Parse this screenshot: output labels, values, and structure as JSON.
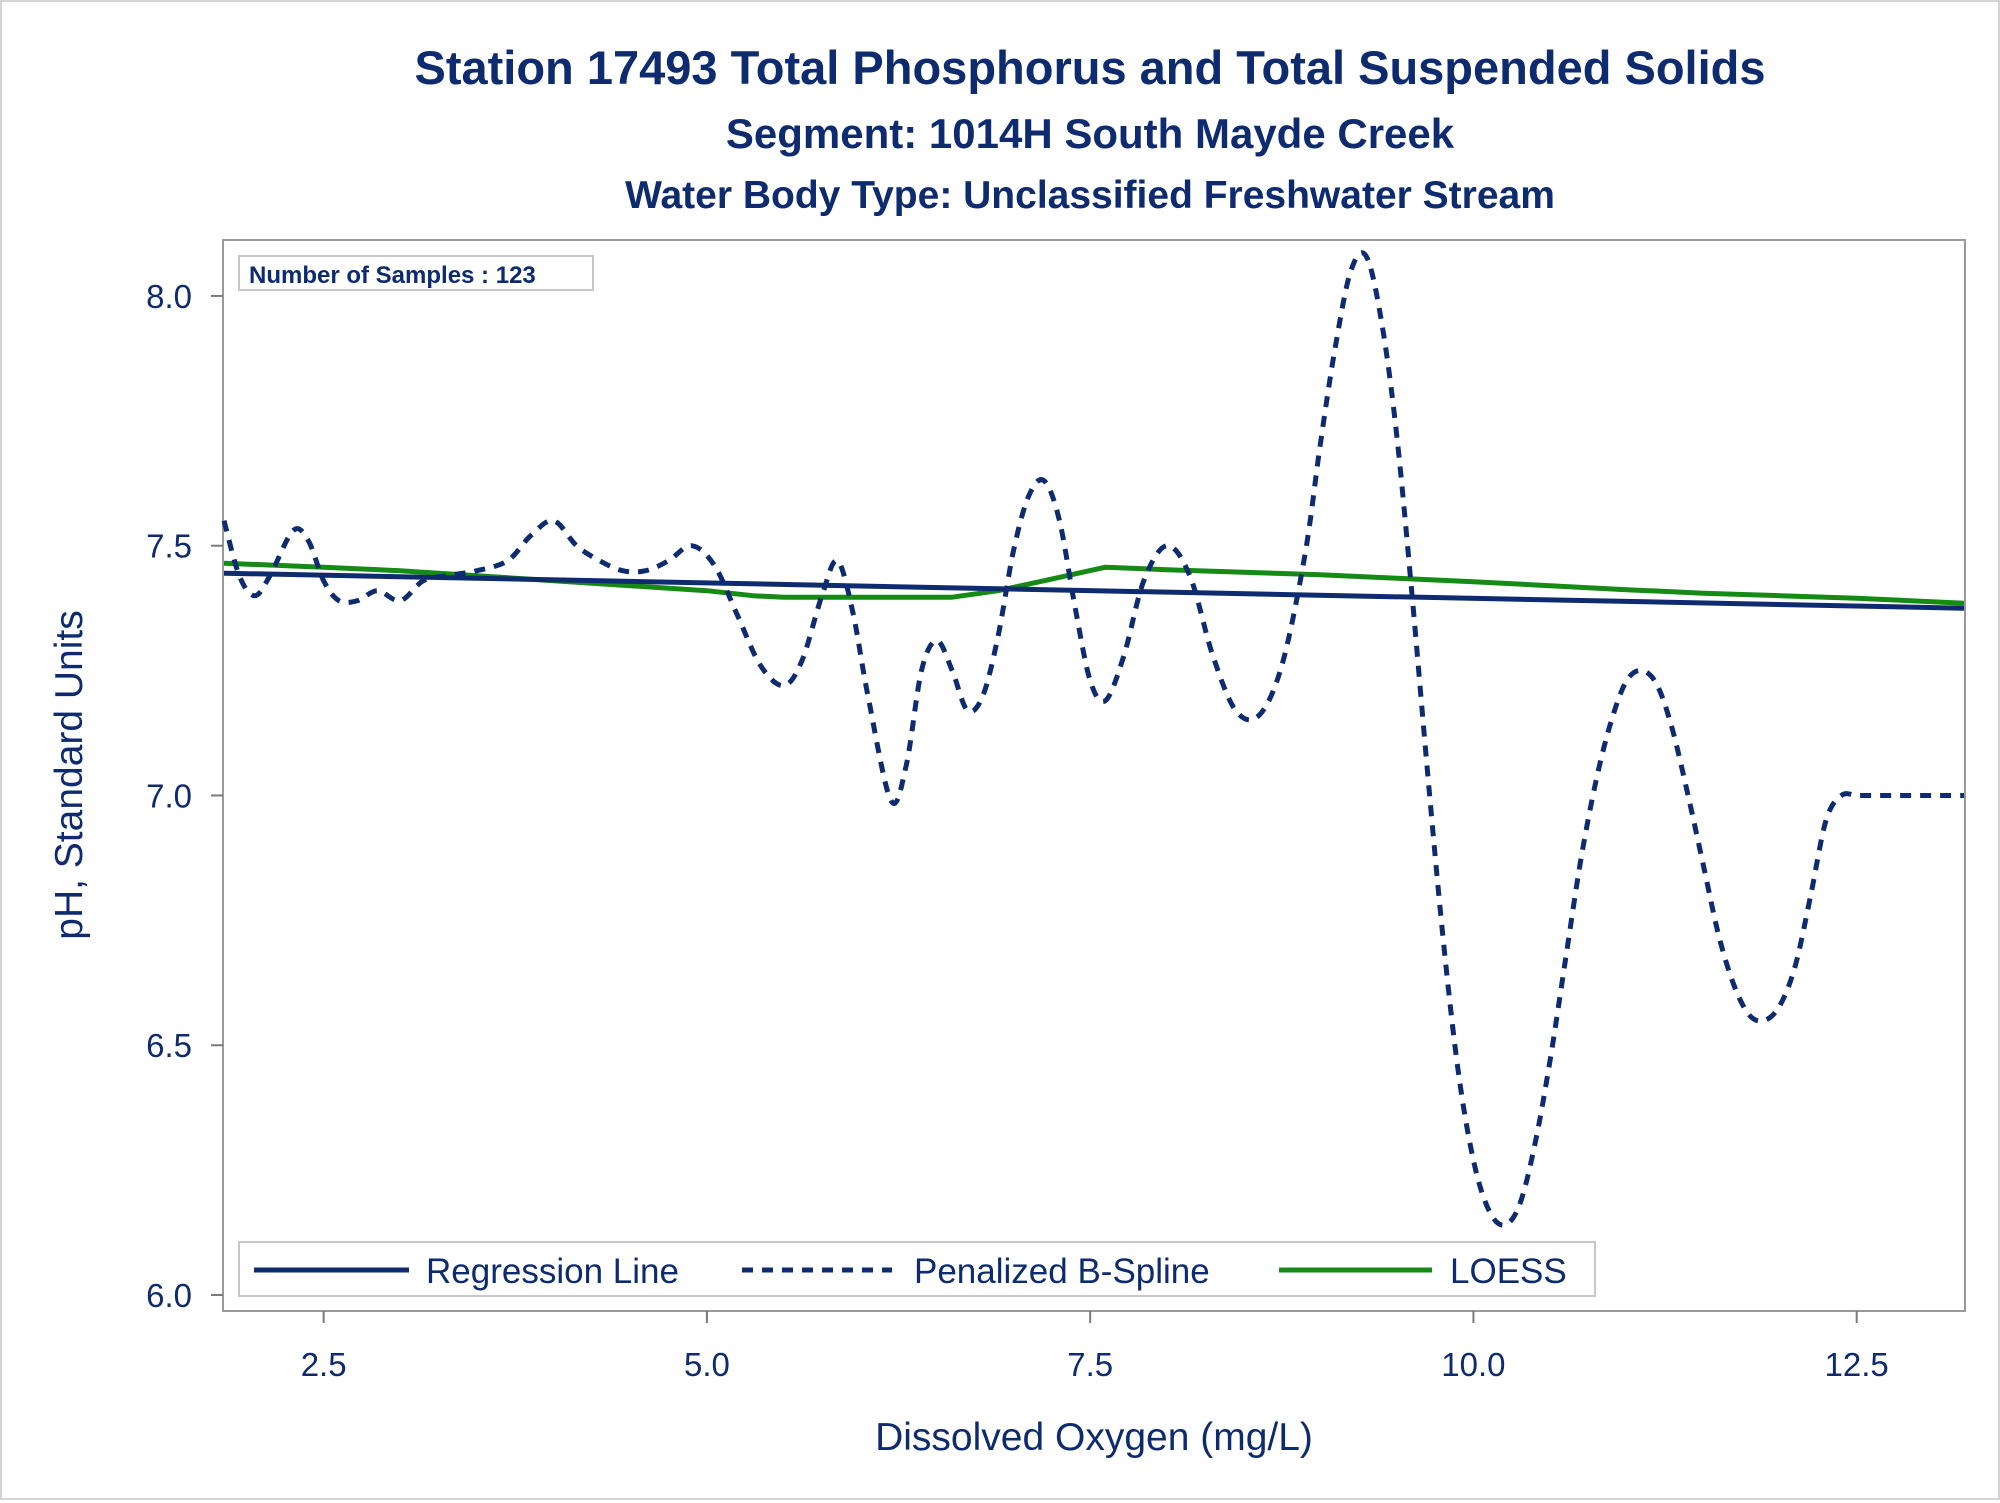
{
  "chart_data": {
    "type": "line",
    "title": "Station 17493  Total Phosphorus and Total Suspended Solids",
    "subtitle": "Segment: 1014H  South Mayde Creek",
    "subtitle2": "Water Body Type: Unclassified Freshwater Stream",
    "xlabel": "Dissolved Oxygen (mg/L)",
    "ylabel": "pH, Standard Units",
    "xlim": [
      1.85,
      13.2
    ],
    "ylim": [
      5.97,
      8.11
    ],
    "xticks": [
      "2.5",
      "5.0",
      "7.5",
      "10.0",
      "12.5"
    ],
    "xtick_values": [
      2.5,
      5.0,
      7.5,
      10.0,
      12.5
    ],
    "yticks": [
      "6.0",
      "6.5",
      "7.0",
      "7.5",
      "8.0"
    ],
    "ytick_values": [
      6.0,
      6.5,
      7.0,
      7.5,
      8.0
    ],
    "grid": false,
    "legend_position": "bottom-inside",
    "inset_label": "Number of Samples : 123",
    "colors": {
      "navy": "#0d2b6e",
      "green": "#158a14",
      "frame": "#9a9a9a"
    },
    "series": [
      {
        "name": "Regression Line",
        "style": "solid",
        "color": "#0d2b6e",
        "x": [
          1.85,
          13.2
        ],
        "y": [
          7.445,
          7.375
        ]
      },
      {
        "name": "Penalized B-Spline",
        "style": "dashed",
        "color": "#0d2b6e",
        "x": [
          1.85,
          1.95,
          2.05,
          2.15,
          2.3,
          2.4,
          2.5,
          2.6,
          2.72,
          2.85,
          3.0,
          3.15,
          3.3,
          3.5,
          3.7,
          3.85,
          4.0,
          4.15,
          4.3,
          4.45,
          4.6,
          4.75,
          4.9,
          5.05,
          5.2,
          5.35,
          5.5,
          5.62,
          5.75,
          5.85,
          5.95,
          6.05,
          6.2,
          6.3,
          6.4,
          6.5,
          6.6,
          6.7,
          6.8,
          6.9,
          7.0,
          7.1,
          7.2,
          7.3,
          7.4,
          7.5,
          7.6,
          7.72,
          7.85,
          8.0,
          8.15,
          8.3,
          8.45,
          8.6,
          8.75,
          8.9,
          9.0,
          9.1,
          9.2,
          9.3,
          9.4,
          9.5,
          9.6,
          9.7,
          9.8,
          9.9,
          10.0,
          10.1,
          10.2,
          10.3,
          10.4,
          10.5,
          10.6,
          10.7,
          10.8,
          10.9,
          11.0,
          11.1,
          11.2,
          11.3,
          11.4,
          11.5,
          11.6,
          11.7,
          11.8,
          11.9,
          12.0,
          12.1,
          12.2,
          12.3,
          12.4,
          12.5,
          12.6,
          12.7,
          12.8,
          12.9,
          13.0,
          13.1,
          13.2
        ],
        "y": [
          7.55,
          7.44,
          7.4,
          7.44,
          7.53,
          7.51,
          7.43,
          7.39,
          7.39,
          7.41,
          7.39,
          7.43,
          7.44,
          7.45,
          7.47,
          7.52,
          7.55,
          7.5,
          7.47,
          7.45,
          7.45,
          7.47,
          7.5,
          7.46,
          7.36,
          7.26,
          7.22,
          7.27,
          7.4,
          7.47,
          7.37,
          7.2,
          6.99,
          7.06,
          7.25,
          7.31,
          7.25,
          7.17,
          7.2,
          7.32,
          7.49,
          7.6,
          7.63,
          7.55,
          7.38,
          7.23,
          7.19,
          7.28,
          7.43,
          7.5,
          7.44,
          7.28,
          7.17,
          7.16,
          7.26,
          7.48,
          7.7,
          7.9,
          8.05,
          8.08,
          7.95,
          7.72,
          7.4,
          7.05,
          6.72,
          6.45,
          6.27,
          6.17,
          6.14,
          6.18,
          6.3,
          6.47,
          6.67,
          6.87,
          7.03,
          7.15,
          7.23,
          7.25,
          7.22,
          7.13,
          7.0,
          6.86,
          6.72,
          6.62,
          6.56,
          6.55,
          6.58,
          6.66,
          6.8,
          6.95,
          7.0,
          7.0,
          7.0,
          7.0,
          7.0,
          7.0,
          7.0,
          7.0,
          7.0
        ]
      },
      {
        "name": "LOESS",
        "style": "solid",
        "color": "#158a14",
        "x": [
          1.85,
          2.5,
          3.0,
          3.5,
          4.0,
          4.5,
          5.0,
          5.3,
          5.5,
          6.0,
          6.5,
          6.6,
          6.9,
          7.2,
          7.6,
          8.0,
          8.5,
          9.0,
          9.5,
          10.0,
          10.5,
          11.0,
          11.5,
          12.0,
          12.5,
          13.2
        ],
        "y": [
          7.465,
          7.457,
          7.45,
          7.44,
          7.43,
          7.42,
          7.41,
          7.4,
          7.397,
          7.397,
          7.397,
          7.397,
          7.41,
          7.43,
          7.457,
          7.452,
          7.447,
          7.442,
          7.435,
          7.428,
          7.42,
          7.412,
          7.405,
          7.4,
          7.395,
          7.385
        ]
      }
    ]
  }
}
